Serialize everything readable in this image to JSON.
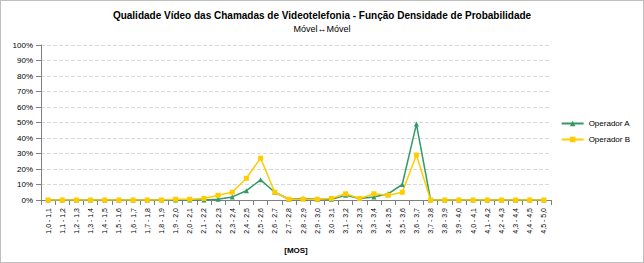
{
  "chart_data": {
    "type": "line",
    "title": "Qualidade Vídeo das Chamadas de Videotelefonia - Função Densidade de Probabilidade",
    "subtitle": "Móvel↔Móvel",
    "x_label": "[MOS]",
    "categories": [
      "1,0 - 1,1",
      "1,1 - 1,2",
      "1,2 - 1,3",
      "1,3 - 1,4",
      "1,4 - 1,5",
      "1,5 - 1,6",
      "1,6 - 1,7",
      "1,7 - 1,8",
      "1,8 - 1,9",
      "1,9 - 2,0",
      "2,0 - 2,1",
      "2,1 - 2,2",
      "2,2 - 2,3",
      "2,3 - 2,4",
      "2,4 - 2,5",
      "2,5 - 2,6",
      "2,6 - 2,7",
      "2,7 - 2,8",
      "2,8 - 2,9",
      "2,9 - 3,0",
      "3,0 - 3,1",
      "3,1 - 3,2",
      "3,2 - 3,3",
      "3,3 - 3,4",
      "3,4 - 3,5",
      "3,5 - 3,6",
      "3,6 - 3,7",
      "3,7 - 3,8",
      "3,8 - 3,9",
      "3,9 - 4,0",
      "4,0 - 4,1",
      "4,1 - 4,2",
      "4,2 - 4,3",
      "4,3 - 4,4",
      "4,4 - 4,5",
      "4,5 - 5,0"
    ],
    "series": [
      {
        "name": "Operador A",
        "color": "#339966",
        "marker": "triangle",
        "values": [
          0,
          0,
          0,
          0,
          0,
          0,
          0,
          0,
          0,
          0,
          0,
          0,
          0.5,
          2,
          6,
          13,
          5,
          0.5,
          1,
          0.5,
          0.5,
          3,
          1,
          2,
          4,
          10,
          49,
          0,
          0,
          0,
          0,
          0,
          0,
          0,
          0,
          0
        ]
      },
      {
        "name": "Operador B",
        "color": "#ffcc00",
        "marker": "square",
        "values": [
          0,
          0,
          0,
          0,
          0,
          0,
          0,
          0,
          0,
          0.5,
          0.5,
          1,
          3,
          5,
          14,
          27,
          5,
          0.5,
          0.5,
          0.5,
          1,
          4,
          1,
          4,
          3,
          5,
          29,
          0,
          0,
          0,
          0,
          0,
          0,
          0,
          0,
          0
        ]
      }
    ],
    "ylim": [
      0,
      100
    ],
    "yticks": [
      {
        "value": 0,
        "label": "0%"
      },
      {
        "value": 10,
        "label": "10%"
      },
      {
        "value": 20,
        "label": "20%"
      },
      {
        "value": 30,
        "label": "30%"
      },
      {
        "value": 40,
        "label": "40%"
      },
      {
        "value": 50,
        "label": "50%"
      },
      {
        "value": 60,
        "label": "60%"
      },
      {
        "value": 70,
        "label": "70%"
      },
      {
        "value": 80,
        "label": "80%"
      },
      {
        "value": 90,
        "label": "90%"
      },
      {
        "value": 100,
        "label": "100%"
      }
    ],
    "grid": true,
    "legend": "right"
  }
}
